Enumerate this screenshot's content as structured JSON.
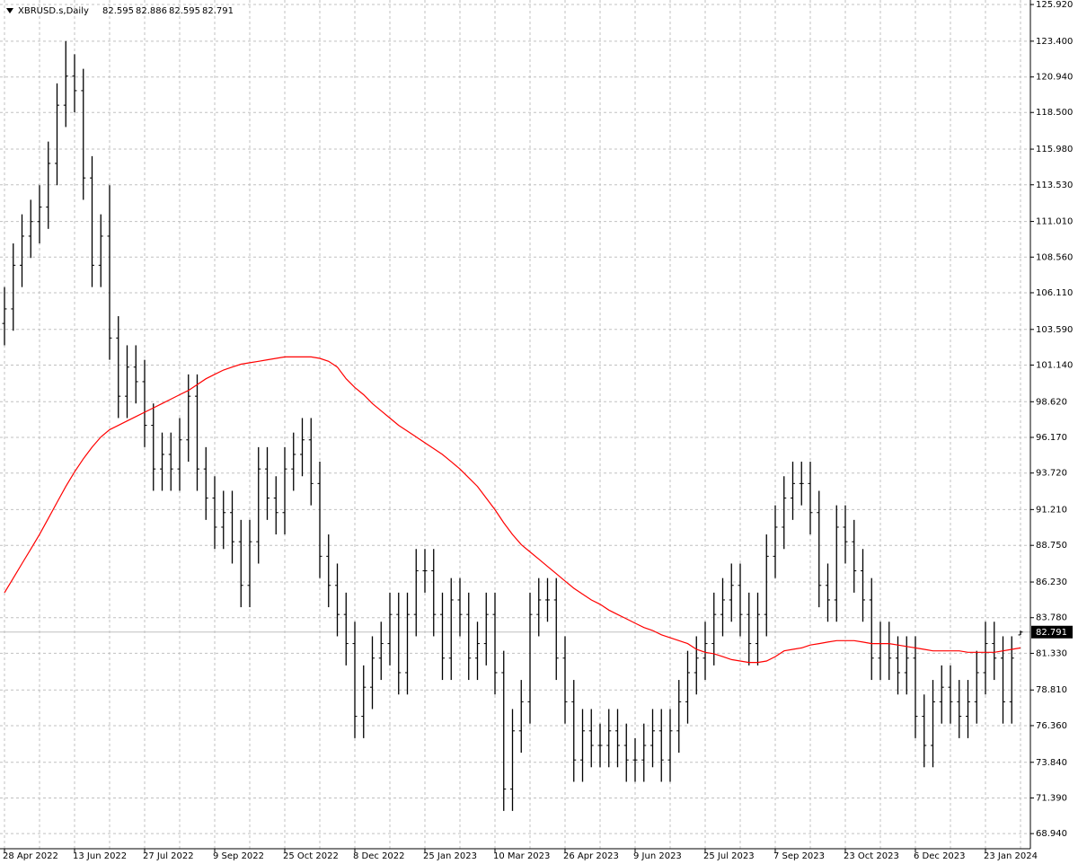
{
  "chart_data": {
    "type": "ohlc",
    "title": "XBRUSD.s,Daily",
    "color": "#000000",
    "grid": true,
    "categories": [
      "28 Apr 2022",
      null,
      null,
      null,
      null,
      null,
      null,
      null,
      "13 Jun 2022",
      null,
      null,
      null,
      null,
      null,
      null,
      null,
      "27 Jul 2022",
      null,
      null,
      null,
      null,
      null,
      null,
      null,
      "9 Sep 2022",
      null,
      null,
      null,
      null,
      null,
      null,
      null,
      "25 Oct 2022",
      null,
      null,
      null,
      null,
      null,
      null,
      null,
      "8 Dec 2022",
      null,
      null,
      null,
      null,
      null,
      null,
      null,
      "25 Jan 2023",
      null,
      null,
      null,
      null,
      null,
      null,
      null,
      "10 Mar 2023",
      null,
      null,
      null,
      null,
      null,
      null,
      null,
      "26 Apr 2023",
      null,
      null,
      null,
      null,
      null,
      null,
      null,
      "9 Jun 2023",
      null,
      null,
      null,
      null,
      null,
      null,
      null,
      "25 Jul 2023",
      null,
      null,
      null,
      null,
      null,
      null,
      null,
      "7 Sep 2023",
      null,
      null,
      null,
      null,
      null,
      null,
      null,
      "23 Oct 2023",
      null,
      null,
      null,
      null,
      null,
      null,
      null,
      "6 Dec 2023",
      null,
      null,
      null,
      null,
      null,
      null,
      null,
      "23 Jan 2024",
      null,
      null,
      null,
      null
    ],
    "open": [
      104,
      105,
      108,
      110,
      111,
      112,
      115,
      119,
      121,
      120,
      114,
      108,
      110,
      103,
      99,
      101,
      100,
      97,
      94,
      95,
      94,
      96,
      99,
      94,
      92,
      90,
      91,
      89,
      86,
      89,
      94,
      92,
      91,
      94,
      95,
      96,
      93,
      88,
      86,
      84,
      82,
      77,
      79,
      81,
      82,
      84,
      80,
      84,
      87,
      87,
      84,
      81,
      85,
      84,
      81,
      82,
      84,
      80,
      72,
      76,
      78,
      84,
      85,
      85,
      81,
      78,
      74,
      76,
      75,
      75,
      76,
      75,
      74,
      74,
      75,
      76,
      74,
      76,
      78,
      80,
      81,
      82,
      84,
      85,
      86,
      84,
      82,
      84,
      88,
      90,
      92,
      93,
      93,
      91,
      86,
      85,
      90,
      89,
      87,
      85,
      81,
      82,
      81,
      80,
      81,
      77,
      75,
      78,
      79,
      78,
      77,
      78,
      80,
      82,
      81,
      78,
      82.595
    ],
    "high": [
      106.5,
      109.5,
      111.5,
      112.5,
      113.5,
      116.5,
      120.5,
      123.4,
      122.5,
      121.5,
      115.5,
      111.5,
      113.5,
      104.5,
      102.5,
      102.5,
      101.5,
      98.5,
      96.5,
      96.5,
      97.5,
      100.5,
      100.5,
      95.5,
      93.5,
      92.5,
      92.5,
      90.5,
      90.5,
      95.5,
      95.5,
      93.5,
      95.5,
      96.5,
      97.5,
      97.5,
      94.5,
      89.5,
      87.5,
      85.5,
      83.5,
      80.5,
      82.5,
      83.5,
      85.5,
      85.5,
      85.5,
      88.5,
      88.5,
      88.5,
      85.5,
      86.5,
      86.5,
      85.5,
      83.5,
      85.5,
      85.5,
      81.5,
      77.5,
      79.5,
      85.5,
      86.5,
      86.5,
      86.5,
      82.5,
      79.5,
      77.5,
      77.5,
      76.5,
      77.5,
      77.5,
      76.5,
      75.5,
      76.5,
      77.5,
      77.5,
      77.5,
      79.5,
      81.5,
      82.5,
      83.5,
      85.5,
      86.5,
      87.5,
      87.5,
      85.5,
      85.5,
      89.5,
      91.5,
      93.5,
      94.5,
      94.5,
      94.5,
      92.5,
      87.5,
      91.5,
      91.5,
      90.5,
      88.5,
      86.5,
      83.5,
      83.5,
      82.5,
      82.5,
      82.5,
      78.5,
      79.5,
      80.5,
      80.5,
      79.5,
      79.5,
      81.5,
      83.5,
      83.5,
      82.5,
      82.5,
      82.886
    ],
    "low": [
      102.5,
      103.5,
      106.5,
      108.5,
      109.5,
      110.5,
      113.5,
      117.5,
      118.5,
      112.5,
      106.5,
      106.5,
      101.5,
      97.5,
      97.5,
      98.5,
      95.5,
      92.5,
      92.5,
      92.5,
      92.5,
      94.5,
      92.5,
      90.5,
      88.5,
      88.5,
      87.5,
      84.5,
      84.5,
      87.5,
      90.5,
      89.5,
      89.5,
      92.5,
      93.5,
      91.5,
      86.5,
      84.5,
      82.5,
      80.5,
      75.5,
      75.5,
      77.5,
      79.5,
      80.5,
      78.5,
      78.5,
      82.5,
      85.5,
      82.5,
      79.5,
      79.5,
      82.5,
      79.5,
      79.5,
      80.5,
      78.5,
      70.5,
      70.5,
      74.5,
      76.5,
      82.5,
      83.5,
      79.5,
      76.5,
      72.5,
      72.5,
      73.5,
      73.5,
      73.5,
      73.5,
      72.5,
      72.5,
      72.5,
      73.5,
      72.5,
      72.5,
      74.5,
      76.5,
      78.5,
      79.5,
      80.5,
      82.5,
      83.5,
      82.5,
      80.5,
      80.5,
      82.5,
      86.5,
      88.5,
      90.5,
      91.5,
      89.5,
      84.5,
      83.5,
      83.5,
      87.5,
      85.5,
      83.5,
      79.5,
      79.5,
      79.5,
      78.5,
      78.5,
      75.5,
      73.5,
      73.5,
      76.5,
      76.5,
      75.5,
      75.5,
      76.5,
      78.5,
      79.5,
      76.5,
      76.5,
      82.595
    ],
    "close": [
      105,
      108,
      110,
      111,
      112,
      115,
      119,
      121,
      120,
      114,
      108,
      110,
      103,
      99,
      101,
      100,
      97,
      94,
      95,
      94,
      96,
      99,
      94,
      92,
      90,
      91,
      89,
      86,
      89,
      94,
      92,
      91,
      94,
      95,
      96,
      93,
      88,
      86,
      84,
      82,
      77,
      79,
      81,
      82,
      84,
      80,
      84,
      87,
      87,
      84,
      81,
      85,
      84,
      81,
      82,
      84,
      80,
      72,
      76,
      78,
      84,
      85,
      85,
      81,
      78,
      74,
      76,
      75,
      75,
      76,
      75,
      74,
      74,
      75,
      76,
      74,
      76,
      78,
      80,
      81,
      82,
      84,
      85,
      86,
      84,
      82,
      84,
      88,
      90,
      92,
      93,
      93,
      91,
      86,
      85,
      90,
      89,
      87,
      85,
      81,
      82,
      81,
      80,
      81,
      77,
      75,
      78,
      79,
      78,
      77,
      78,
      80,
      82,
      81,
      78,
      81,
      82.791
    ],
    "overlay_line": {
      "color": "#ff0000",
      "values": [
        85.5,
        86.5,
        87.5,
        88.5,
        89.5,
        90.6,
        91.7,
        92.8,
        93.8,
        94.7,
        95.5,
        96.2,
        96.7,
        97.0,
        97.3,
        97.6,
        97.9,
        98.2,
        98.5,
        98.8,
        99.1,
        99.4,
        99.8,
        100.2,
        100.5,
        100.8,
        101.0,
        101.2,
        101.3,
        101.4,
        101.5,
        101.6,
        101.7,
        101.7,
        101.7,
        101.7,
        101.6,
        101.4,
        101.0,
        100.2,
        99.6,
        99.1,
        98.5,
        98.0,
        97.5,
        97.0,
        96.6,
        96.2,
        95.8,
        95.4,
        95.0,
        94.5,
        94.0,
        93.4,
        92.8,
        92.0,
        91.2,
        90.3,
        89.5,
        88.8,
        88.3,
        87.8,
        87.3,
        86.8,
        86.3,
        85.8,
        85.4,
        85.0,
        84.7,
        84.3,
        84.0,
        83.7,
        83.4,
        83.1,
        82.9,
        82.6,
        82.4,
        82.2,
        82.0,
        81.6,
        81.4,
        81.3,
        81.1,
        80.9,
        80.8,
        80.7,
        80.7,
        80.8,
        81.1,
        81.5,
        81.6,
        81.7,
        81.9,
        82.0,
        82.1,
        82.2,
        82.2,
        82.2,
        82.1,
        82.0,
        82.0,
        82.0,
        81.9,
        81.8,
        81.7,
        81.6,
        81.5,
        81.5,
        81.5,
        81.5,
        81.4,
        81.4,
        81.4,
        81.4,
        81.5,
        81.6,
        81.7
      ]
    },
    "last_price_color": "#c0c0c0",
    "ylim": [
      67.9,
      126.23
    ],
    "yticks": [
      {
        "value": 125.92,
        "label": "125.920"
      },
      {
        "value": 123.4,
        "label": "123.400"
      },
      {
        "value": 120.94,
        "label": "120.940"
      },
      {
        "value": 118.5,
        "label": "118.500"
      },
      {
        "value": 115.98,
        "label": "115.980"
      },
      {
        "value": 113.53,
        "label": "113.530"
      },
      {
        "value": 111.01,
        "label": "111.010"
      },
      {
        "value": 108.56,
        "label": "108.560"
      },
      {
        "value": 106.11,
        "label": "106.110"
      },
      {
        "value": 103.59,
        "label": "103.590"
      },
      {
        "value": 101.14,
        "label": "101.140"
      },
      {
        "value": 98.62,
        "label": "98.620"
      },
      {
        "value": 96.17,
        "label": "96.170"
      },
      {
        "value": 93.72,
        "label": "93.720"
      },
      {
        "value": 91.21,
        "label": "91.210"
      },
      {
        "value": 88.75,
        "label": "88.750"
      },
      {
        "value": 86.23,
        "label": "86.230"
      },
      {
        "value": 83.78,
        "label": "83.780"
      },
      {
        "value": 81.33,
        "label": "81.330"
      },
      {
        "value": 78.81,
        "label": "78.810"
      },
      {
        "value": 76.36,
        "label": "76.360"
      },
      {
        "value": 73.84,
        "label": "73.840"
      },
      {
        "value": 71.39,
        "label": "71.390"
      },
      {
        "value": 68.94,
        "label": "68.940"
      }
    ]
  }
}
